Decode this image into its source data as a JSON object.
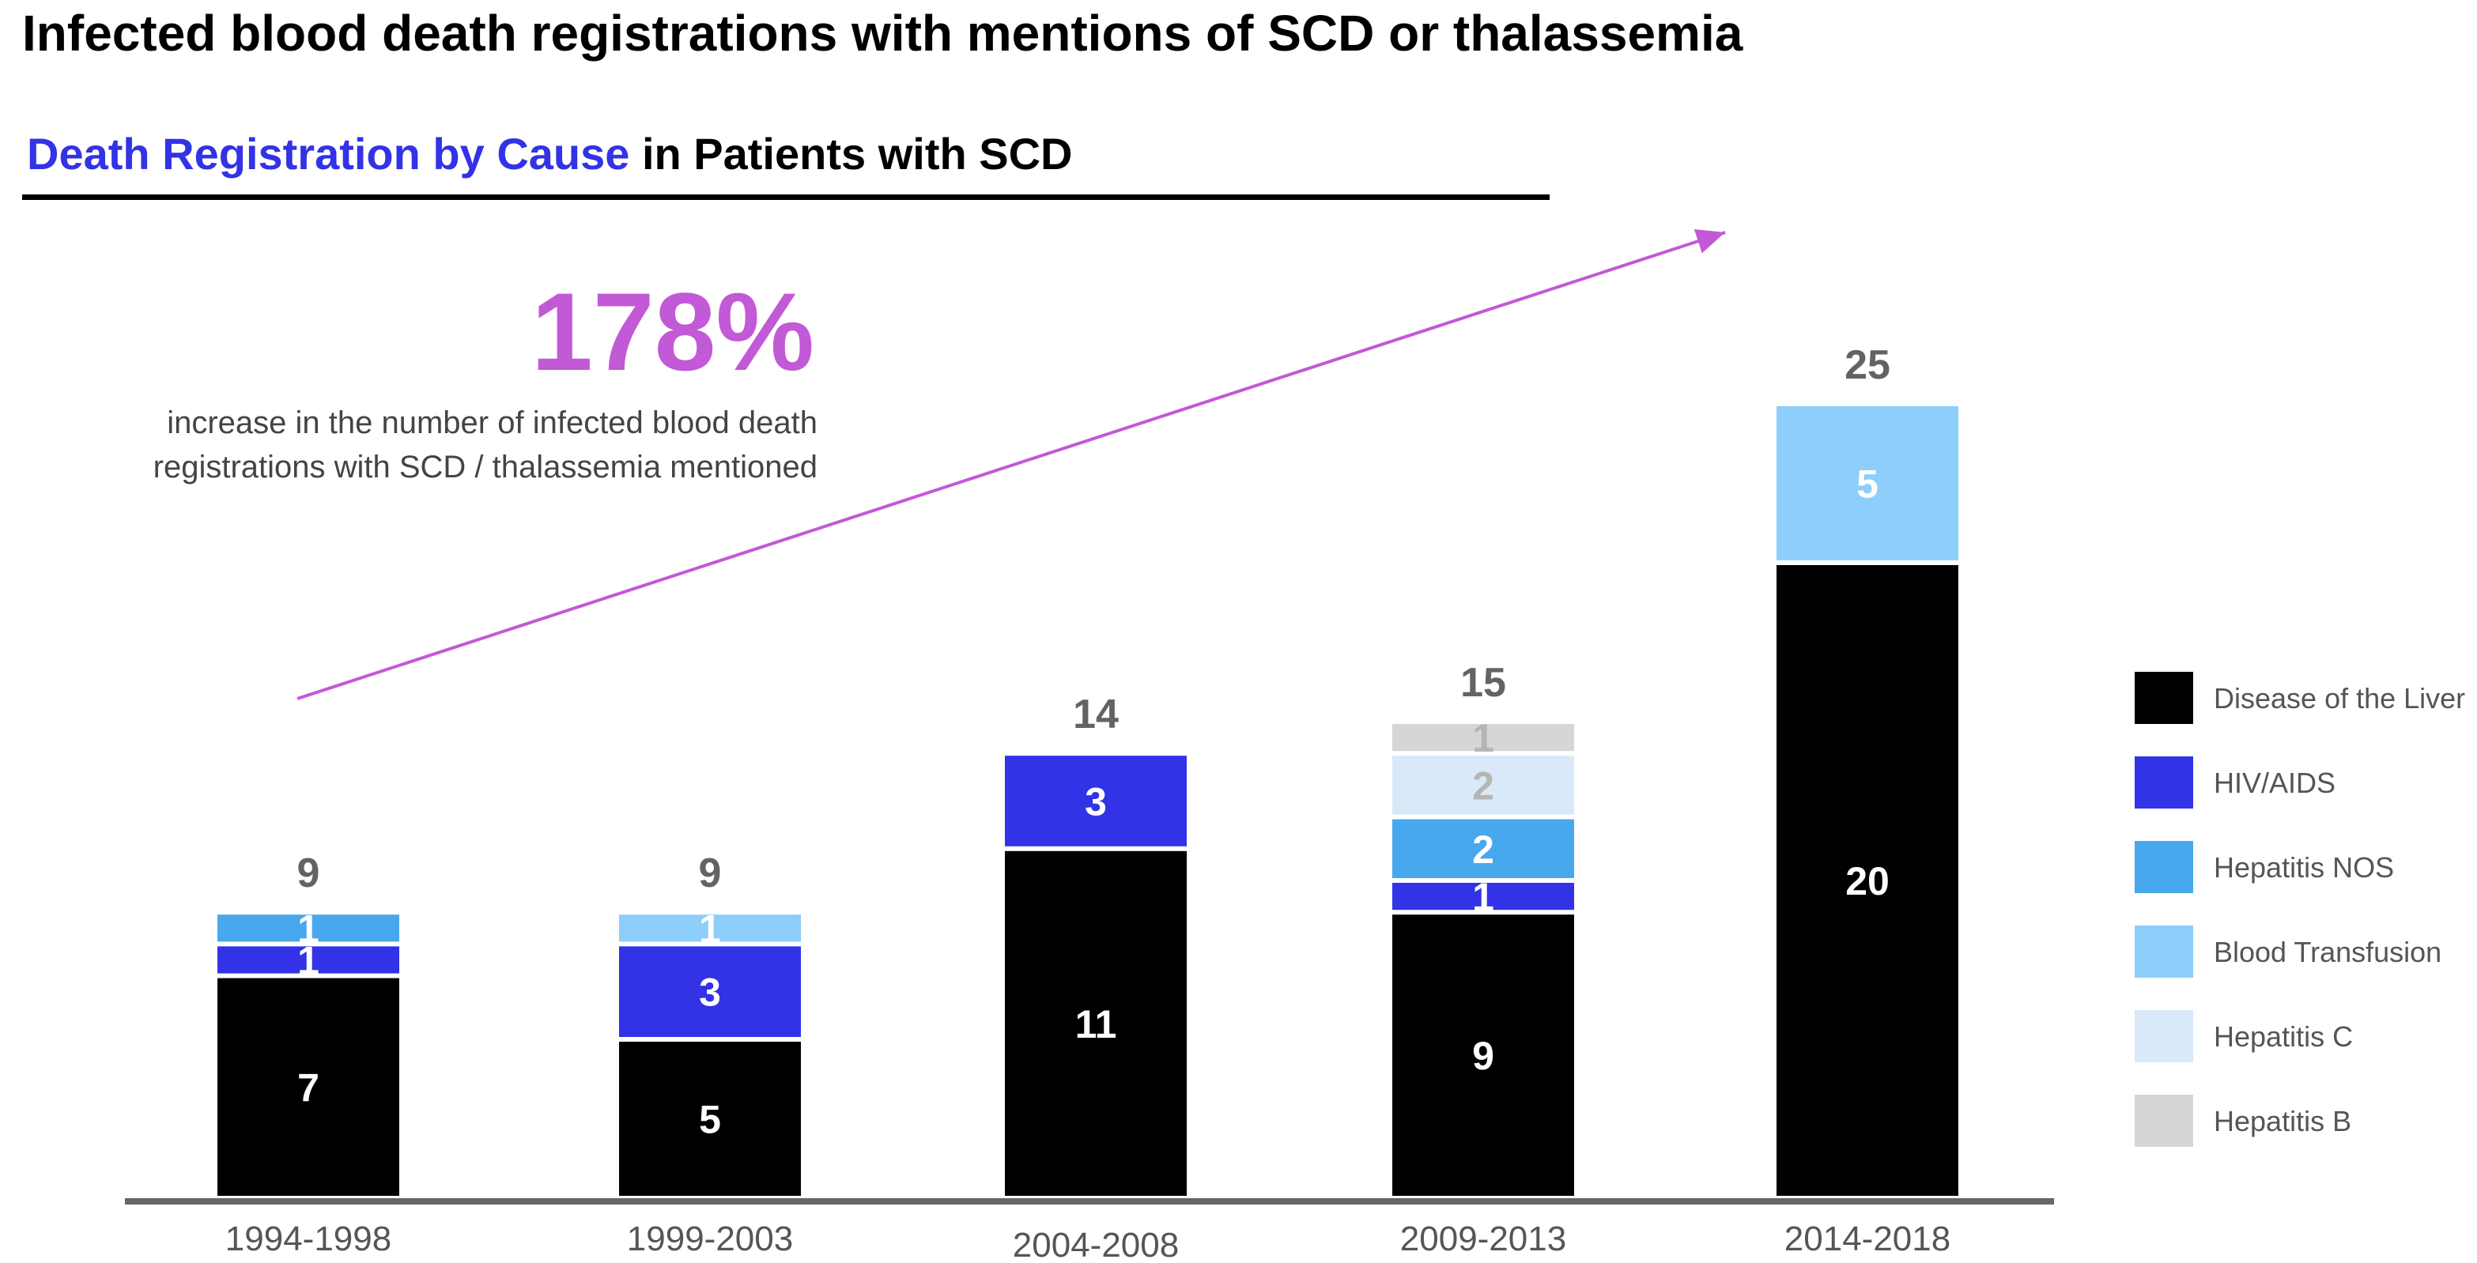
{
  "title": "Infected blood death registrations with mentions of SCD or thalassemia",
  "subtitle": {
    "highlight": "Death Registration by Cause",
    "rest": " in Patients with SCD"
  },
  "callout": {
    "value": "178%",
    "line1": "increase in the number of infected blood death",
    "line2": "registrations with SCD / thalassemia mentioned"
  },
  "colors": {
    "accent": "#c259d6",
    "subtitle_blue": "#3232e6"
  },
  "chart_data": {
    "type": "bar",
    "stacked": true,
    "categories": [
      "1994-1998",
      "1999-2003",
      "2004-2008",
      "2009-2013",
      "2014-2018"
    ],
    "series": [
      {
        "name": "Disease of the Liver",
        "color": "#000000",
        "values": [
          7,
          5,
          11,
          9,
          20
        ]
      },
      {
        "name": "HIV/AIDS",
        "color": "#3232e6",
        "values": [
          1,
          3,
          3,
          1,
          0
        ]
      },
      {
        "name": "Hepatitis NOS",
        "color": "#47a8ed",
        "values": [
          1,
          0,
          0,
          2,
          0
        ]
      },
      {
        "name": "Blood Transfusion",
        "color": "#8dcefa",
        "values": [
          0,
          1,
          0,
          0,
          5
        ]
      },
      {
        "name": "Hepatitis C",
        "color": "#d9e9fa",
        "values": [
          0,
          0,
          0,
          2,
          0
        ]
      },
      {
        "name": "Hepatitis B",
        "color": "#d6d6d6",
        "values": [
          0,
          0,
          0,
          1,
          0
        ]
      }
    ],
    "totals": [
      9,
      9,
      14,
      15,
      25
    ],
    "legend": "right",
    "grid": false
  }
}
